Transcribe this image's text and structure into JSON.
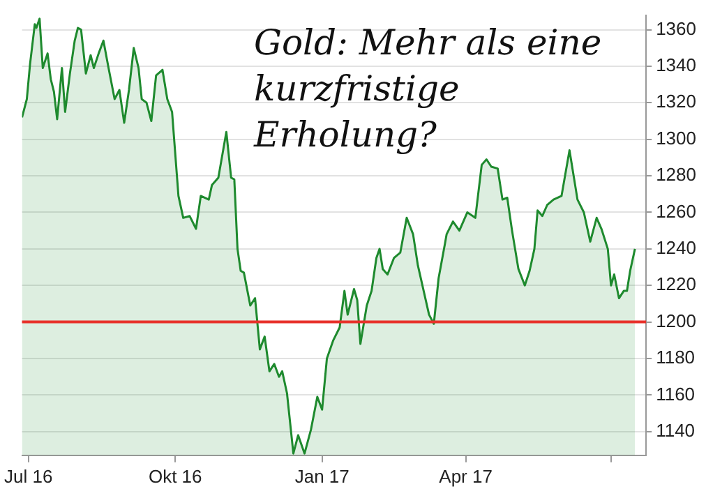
{
  "chart_data": {
    "type": "area",
    "title": "Gold: Mehr als eine kurzfristige Erholung?",
    "x": [
      "2016-06-27",
      "2016-06-30",
      "2016-07-02",
      "2016-07-05",
      "2016-07-06",
      "2016-07-08",
      "2016-07-10",
      "2016-07-13",
      "2016-07-15",
      "2016-07-17",
      "2016-07-19",
      "2016-07-22",
      "2016-07-24",
      "2016-07-27",
      "2016-07-30",
      "2016-08-01",
      "2016-08-03",
      "2016-08-06",
      "2016-08-09",
      "2016-08-11",
      "2016-08-14",
      "2016-08-17",
      "2016-08-20",
      "2016-08-24",
      "2016-08-27",
      "2016-08-30",
      "2016-09-02",
      "2016-09-05",
      "2016-09-08",
      "2016-09-10",
      "2016-09-13",
      "2016-09-16",
      "2016-09-19",
      "2016-09-23",
      "2016-09-26",
      "2016-09-29",
      "2016-10-03",
      "2016-10-06",
      "2016-10-10",
      "2016-10-14",
      "2016-10-17",
      "2016-10-22",
      "2016-10-24",
      "2016-10-28",
      "2016-11-02",
      "2016-11-05",
      "2016-11-07",
      "2016-11-09",
      "2016-11-11",
      "2016-11-13",
      "2016-11-17",
      "2016-11-20",
      "2016-11-23",
      "2016-11-26",
      "2016-11-29",
      "2016-12-02",
      "2016-12-05",
      "2016-12-07",
      "2016-12-10",
      "2016-12-14",
      "2016-12-17",
      "2016-12-21",
      "2016-12-25",
      "2016-12-29",
      "2017-01-01",
      "2017-01-04",
      "2017-01-08",
      "2017-01-12",
      "2017-01-15",
      "2017-01-17",
      "2017-01-21",
      "2017-01-23",
      "2017-01-25",
      "2017-01-29",
      "2017-02-01",
      "2017-02-04",
      "2017-02-06",
      "2017-02-08",
      "2017-02-11",
      "2017-02-15",
      "2017-02-19",
      "2017-02-23",
      "2017-02-27",
      "2017-03-02",
      "2017-03-09",
      "2017-03-12",
      "2017-03-15",
      "2017-03-19",
      "2017-03-20",
      "2017-03-24",
      "2017-03-28",
      "2017-04-02",
      "2017-04-07",
      "2017-04-11",
      "2017-04-14",
      "2017-04-17",
      "2017-04-21",
      "2017-04-24",
      "2017-04-27",
      "2017-04-30",
      "2017-05-04",
      "2017-05-08",
      "2017-05-11",
      "2017-05-14",
      "2017-05-16",
      "2017-05-19",
      "2017-05-22",
      "2017-05-26",
      "2017-05-31",
      "2017-06-05",
      "2017-06-10",
      "2017-06-14",
      "2017-06-18",
      "2017-06-22",
      "2017-06-25",
      "2017-06-29",
      "2017-07-01",
      "2017-07-03",
      "2017-07-06",
      "2017-07-09",
      "2017-07-11",
      "2017-07-13",
      "2017-07-16"
    ],
    "series": [
      {
        "color": "#1e8a2e",
        "values": [
          1312,
          1322,
          1341,
          1363,
          1361,
          1366,
          1339,
          1347,
          1333,
          1326,
          1311,
          1339,
          1315,
          1336,
          1354,
          1361,
          1360,
          1336,
          1346,
          1339,
          1347,
          1354,
          1340,
          1322,
          1327,
          1309,
          1327,
          1350,
          1339,
          1322,
          1320,
          1310,
          1335,
          1338,
          1322,
          1315,
          1269,
          1257,
          1258,
          1251,
          1269,
          1267,
          1275,
          1279,
          1304,
          1279,
          1278,
          1240,
          1228,
          1227,
          1209,
          1213,
          1185,
          1192,
          1173,
          1177,
          1170,
          1173,
          1161,
          1128,
          1138,
          1128,
          1141,
          1159,
          1152,
          1180,
          1190,
          1197,
          1217,
          1204,
          1218,
          1212,
          1188,
          1209,
          1217,
          1235,
          1240,
          1229,
          1226,
          1235,
          1238,
          1257,
          1248,
          1231,
          1204,
          1199,
          1224,
          1243,
          1248,
          1255,
          1250,
          1260,
          1257,
          1286,
          1289,
          1285,
          1284,
          1267,
          1268,
          1250,
          1229,
          1220,
          1228,
          1240,
          1261,
          1258,
          1264,
          1267,
          1269,
          1294,
          1267,
          1260,
          1244,
          1257,
          1251,
          1240,
          1220,
          1226,
          1213,
          1217,
          1217,
          1228,
          1240
        ]
      }
    ],
    "xlim": [
      "2016-06-27",
      "2017-07-23"
    ],
    "xticks": [
      {
        "value": "2016-07-01",
        "label": "Jul 16"
      },
      {
        "value": "2016-10-01",
        "label": "Okt 16"
      },
      {
        "value": "2017-01-01",
        "label": "Jan 17"
      },
      {
        "value": "2017-04-01",
        "label": "Apr 17"
      },
      {
        "value": "2017-07-01",
        "label": null
      }
    ],
    "ylim": [
      1127,
      1368
    ],
    "yticks": [
      1140,
      1160,
      1180,
      1200,
      1220,
      1240,
      1260,
      1280,
      1300,
      1320,
      1340,
      1360
    ],
    "ref_lines": [
      {
        "axis": "y",
        "value": 1200,
        "color": "#e8312a"
      }
    ],
    "grid": "y",
    "legend": false
  }
}
